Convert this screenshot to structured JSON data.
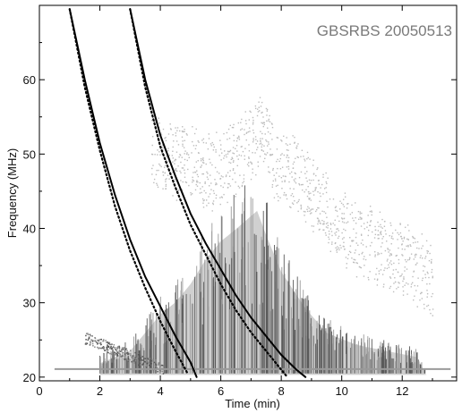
{
  "chart_data": {
    "type": "spectrogram",
    "title": "GBSRBS 20050513",
    "xlabel": "Time (min)",
    "ylabel": "Frequency (MHz)",
    "xlim": [
      0,
      13.8
    ],
    "ylim": [
      19.5,
      70
    ],
    "x_ticks": [
      0,
      2,
      4,
      6,
      8,
      10,
      12
    ],
    "y_ticks": [
      20,
      30,
      40,
      50,
      60
    ],
    "colors": {
      "emission_light": "#bdbdbd",
      "emission_mid": "#9a9a9a",
      "emission_dark": "#5a5a5a",
      "model_curve": "#000000"
    },
    "emission_lanes": [
      {
        "name": "fundamental",
        "shade": "dark",
        "points": [
          [
            2.0,
            23
          ],
          [
            3.0,
            25
          ],
          [
            4.0,
            31
          ],
          [
            4.5,
            33
          ],
          [
            5.0,
            36
          ],
          [
            5.5,
            40
          ],
          [
            6.0,
            43
          ],
          [
            6.5,
            45
          ],
          [
            7.2,
            48
          ],
          [
            7.5,
            44
          ],
          [
            8.0,
            38
          ],
          [
            8.8,
            32
          ],
          [
            9.5,
            28
          ],
          [
            10.5,
            26
          ],
          [
            11.5,
            25
          ],
          [
            12.5,
            24
          ],
          [
            12.8,
            21
          ]
        ]
      },
      {
        "name": "harmonic",
        "shade": "light",
        "points": [
          [
            3.7,
            54
          ],
          [
            4.2,
            53
          ],
          [
            5.0,
            52
          ],
          [
            5.8,
            51
          ],
          [
            6.5,
            53
          ],
          [
            7.0,
            55
          ],
          [
            7.4,
            57
          ],
          [
            7.8,
            52
          ],
          [
            8.4,
            51
          ],
          [
            9.0,
            48
          ],
          [
            9.8,
            44
          ],
          [
            10.5,
            42
          ],
          [
            11.5,
            40
          ],
          [
            12.3,
            39
          ],
          [
            13.0,
            36
          ]
        ]
      }
    ],
    "series": [
      {
        "style": "solid",
        "x": [
          1.0,
          1.5,
          2.0,
          2.5,
          3.0,
          3.5,
          4.0,
          4.5,
          5.0,
          5.2
        ],
        "y": [
          69.5,
          60.0,
          51.5,
          44.5,
          38.5,
          33.5,
          29.5,
          25.5,
          22.0,
          20.0
        ]
      },
      {
        "style": "dotted",
        "x": [
          1.0,
          1.5,
          2.0,
          2.5,
          3.0,
          3.5,
          4.0,
          4.5,
          4.9
        ],
        "y": [
          69.5,
          59.0,
          50.5,
          43.0,
          37.0,
          32.0,
          27.5,
          23.5,
          20.5
        ]
      },
      {
        "style": "solid",
        "x": [
          3.0,
          3.5,
          4.0,
          4.5,
          5.0,
          5.5,
          6.0,
          6.5,
          7.0,
          7.5,
          8.0,
          8.5,
          8.8
        ],
        "y": [
          69.5,
          60.0,
          52.5,
          47.0,
          42.0,
          38.0,
          34.5,
          31.0,
          28.0,
          25.5,
          23.0,
          21.0,
          20.0
        ]
      },
      {
        "style": "dotted",
        "x": [
          3.0,
          3.5,
          4.0,
          4.5,
          5.0,
          5.5,
          6.0,
          6.5,
          7.0,
          7.5,
          8.0,
          8.2
        ],
        "y": [
          69.5,
          59.0,
          51.0,
          45.5,
          40.5,
          36.5,
          32.5,
          29.0,
          26.0,
          23.5,
          21.0,
          20.0
        ]
      }
    ]
  }
}
